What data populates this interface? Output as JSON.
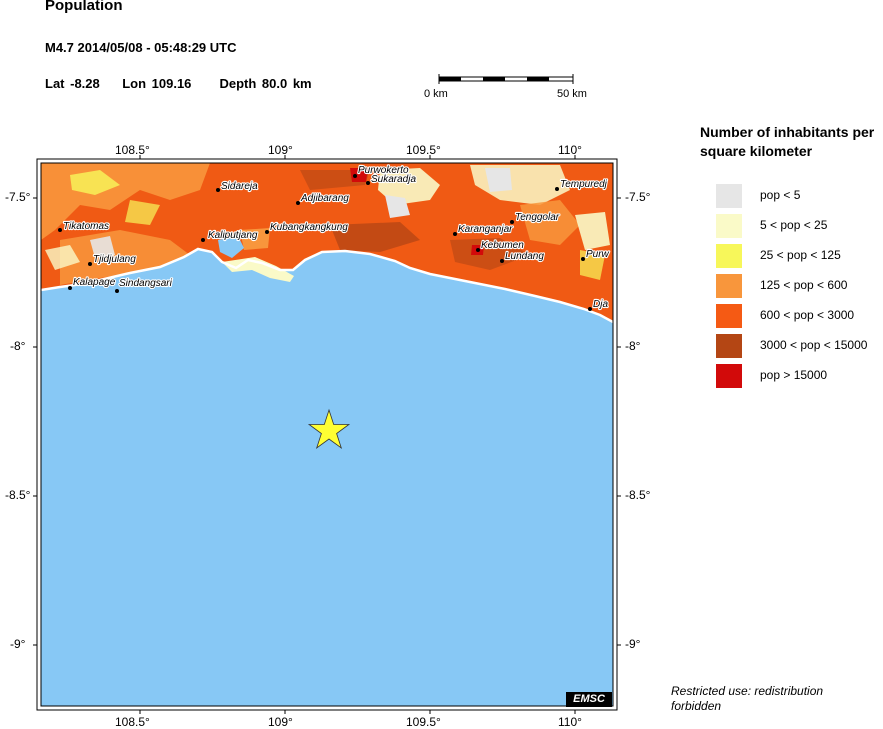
{
  "header": {
    "title": "Population",
    "event": "M4.7  2014/05/08 - 05:48:29 UTC",
    "lat": "Lat -8.28",
    "lon": "Lon 109.16",
    "depth": "Depth  80.0 km"
  },
  "scale_bar": {
    "left_label": "0 km",
    "right_label": "50 km"
  },
  "map": {
    "lon_ticks_top": [
      "108.5°",
      "109°",
      "109.5°",
      "110°"
    ],
    "lon_ticks_bottom": [
      "108.5°",
      "109°",
      "109.5°",
      "110°"
    ],
    "lat_ticks_left": [
      "-7.5°",
      "-8°",
      "-8.5°",
      "-9°"
    ],
    "lat_ticks_right": [
      "-7.5°",
      "-8°",
      "-8.5°",
      "-9°"
    ],
    "sea_color": "#87c8f5",
    "cities": [
      {
        "name": "Purwokerto"
      },
      {
        "name": "Sukaradja"
      },
      {
        "name": "Sidareja"
      },
      {
        "name": "Adjibarang"
      },
      {
        "name": "Tempuredj"
      },
      {
        "name": "Tenggolar"
      },
      {
        "name": "Tikatomas"
      },
      {
        "name": "Kaliputjang"
      },
      {
        "name": "Kubangkangkung"
      },
      {
        "name": "Karanganjar"
      },
      {
        "name": "Kebumen"
      },
      {
        "name": "Lundang"
      },
      {
        "name": "Purw"
      },
      {
        "name": "Tjidjulang"
      },
      {
        "name": "Kalapage"
      },
      {
        "name": "Sindangsari"
      },
      {
        "name": "Dja"
      }
    ],
    "epicenter_icon": "star-icon",
    "watermark": "EMSC"
  },
  "legend": {
    "title": "Number of inhabitants per square kilometer",
    "items": [
      {
        "label": "pop < 5",
        "color": "#e6e6e6"
      },
      {
        "label": "5 < pop < 25",
        "color": "#fafac8"
      },
      {
        "label": "25 < pop < 125",
        "color": "#f7f75a"
      },
      {
        "label": "125 < pop < 600",
        "color": "#f8963c"
      },
      {
        "label": "600 < pop < 3000",
        "color": "#f55a14"
      },
      {
        "label": "3000 < pop < 15000",
        "color": "#b44614"
      },
      {
        "label": "pop > 15000",
        "color": "#d20a0a"
      }
    ]
  },
  "footer": {
    "restricted": "Restricted use: redistribution forbidden"
  }
}
